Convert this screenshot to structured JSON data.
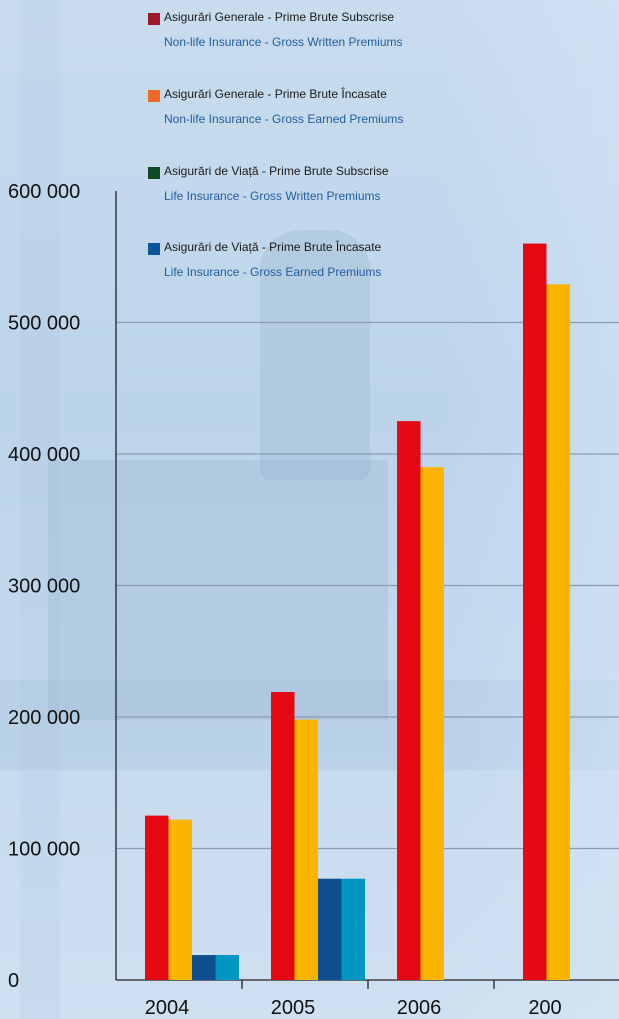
{
  "legend": [
    {
      "ro": "Asigurări Generale   - Prime Brute Subscrise",
      "en": "Non-life Insurance  - Gross Written Premiums",
      "color": "#a0162a"
    },
    {
      "ro": "Asigurări Generale   - Prime Brute Încasate",
      "en": "Non-life Insurance  - Gross Earned Premiums",
      "color": "#ef6a24"
    },
    {
      "ro": "Asigurări de Viață   - Prime Brute Subscrise",
      "en": "Life Insurance  - Gross Written Premiums",
      "color": "#0f4a24"
    },
    {
      "ro": "Asigurări de Viață   - Prime Brute Încasate",
      "en": "Life Insurance  - Gross Earned Premiums",
      "color": "#0d559a"
    }
  ],
  "chart_data": {
    "type": "bar",
    "categories": [
      "2004",
      "2005",
      "2006",
      "200"
    ],
    "series": [
      {
        "name": "Asigurări Generale - Prime Brute Subscrise / Non-life Insurance - Gross Written Premiums",
        "color": "#e50914",
        "values": [
          125000,
          219000,
          425000,
          560000
        ]
      },
      {
        "name": "Asigurări Generale - Prime Brute Încasate / Non-life Insurance - Gross Earned Premiums",
        "color": "#fbb400",
        "values": [
          122000,
          198000,
          390000,
          529000
        ]
      },
      {
        "name": "Asigurări de Viață - Prime Brute Subscrise / Life Insurance - Gross Written Premiums",
        "color": "#0d4f8f",
        "values": [
          19000,
          77000,
          null,
          null
        ]
      },
      {
        "name": "Asigurări de Viață - Prime Brute Încasate / Life Insurance - Gross Earned Premiums",
        "color": "#0096c4",
        "values": [
          19000,
          77000,
          null,
          null
        ]
      }
    ],
    "y_ticks": [
      "0",
      "100 000",
      "200 000",
      "300 000",
      "400 000",
      "500 000",
      "600 000"
    ],
    "ylim": [
      0,
      600000
    ],
    "grid": true,
    "legend_position": "top"
  }
}
